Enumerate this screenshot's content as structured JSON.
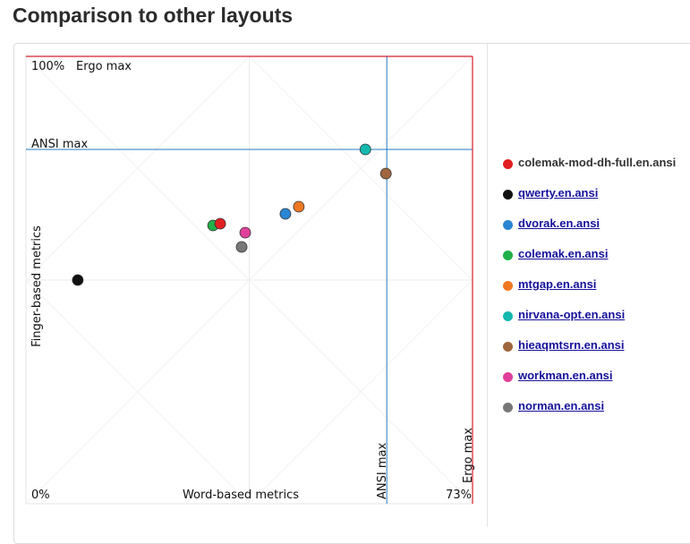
{
  "page_title": "Comparison to other layouts",
  "chart_data": {
    "type": "scatter",
    "xlabel": "Word-based metrics",
    "ylabel": "Finger-based metrics",
    "x_axis_labels": {
      "min": "0%",
      "max": "73%"
    },
    "y_axis_labels": {
      "max": "100%"
    },
    "xlim": [
      0,
      1
    ],
    "ylim": [
      0,
      1
    ],
    "reference_lines": [
      {
        "label": "ANSI max",
        "x": 0.808,
        "y": 0.792,
        "color": "#1f7bc4"
      },
      {
        "label": "Ergo max",
        "x": 1.0,
        "y": 1.0,
        "color": "#d4202a"
      }
    ],
    "series": [
      {
        "name": "colemak-mod-dh-full.en.ansi",
        "x": 0.435,
        "y": 0.626,
        "color": "#e02020",
        "current": true
      },
      {
        "name": "qwerty.en.ansi",
        "x": 0.116,
        "y": 0.5,
        "color": "#111111"
      },
      {
        "name": "dvorak.en.ansi",
        "x": 0.581,
        "y": 0.648,
        "color": "#2a86d4"
      },
      {
        "name": "colemak.en.ansi",
        "x": 0.419,
        "y": 0.622,
        "color": "#22b04a"
      },
      {
        "name": "mtgap.en.ansi",
        "x": 0.611,
        "y": 0.664,
        "color": "#f07822"
      },
      {
        "name": "nirvana-opt.en.ansi",
        "x": 0.76,
        "y": 0.792,
        "color": "#14b8ae"
      },
      {
        "name": "hieaqmtsrn.en.ansi",
        "x": 0.806,
        "y": 0.738,
        "color": "#a0663e"
      },
      {
        "name": "workman.en.ansi",
        "x": 0.491,
        "y": 0.606,
        "color": "#e0409a"
      },
      {
        "name": "norman.en.ansi",
        "x": 0.483,
        "y": 0.574,
        "color": "#777777"
      }
    ]
  }
}
